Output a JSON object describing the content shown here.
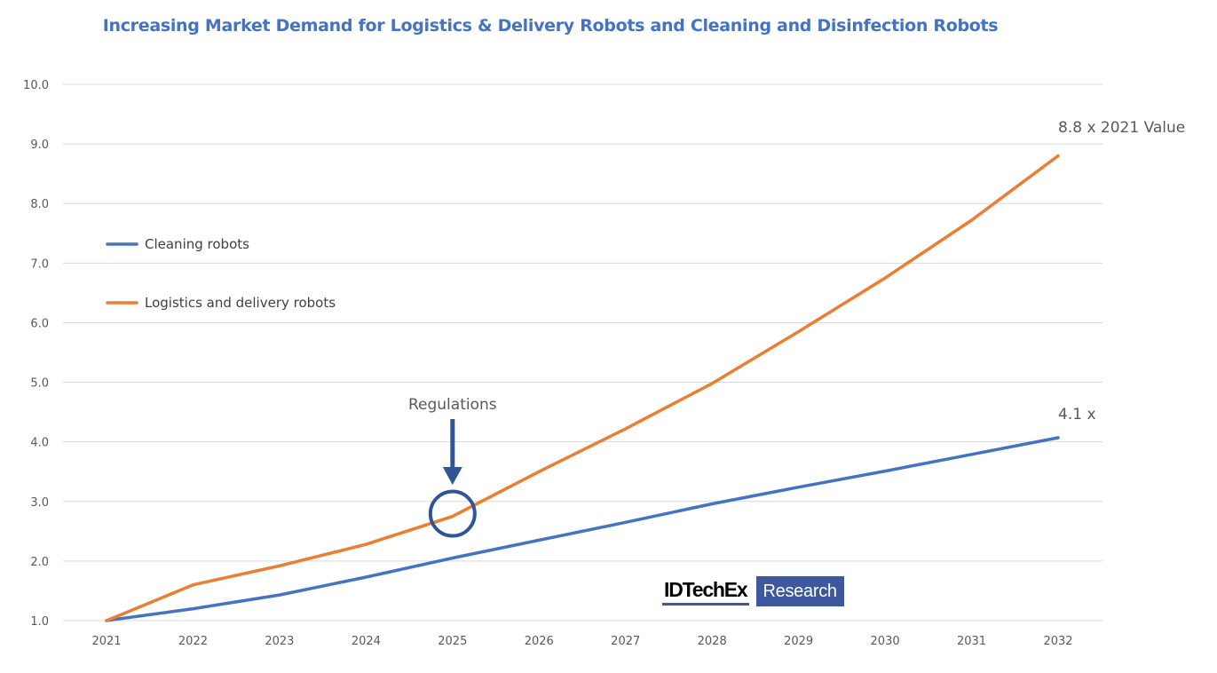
{
  "chart_data": {
    "type": "line",
    "title": "Increasing Market Demand for Logistics & Delivery Robots and Cleaning and Disinfection Robots",
    "xlabel": "",
    "ylabel": "",
    "categories": [
      "2021",
      "2022",
      "2023",
      "2024",
      "2025",
      "2026",
      "2027",
      "2028",
      "2029",
      "2030",
      "2031",
      "2032"
    ],
    "y_ticks": [
      "1.0",
      "2.0",
      "3.0",
      "4.0",
      "5.0",
      "6.0",
      "7.0",
      "8.0",
      "9.0",
      "10.0"
    ],
    "ylim": [
      1.0,
      10.0
    ],
    "grid": true,
    "legend_position": "left",
    "series": [
      {
        "name": "Cleaning robots",
        "color": "#4472c4",
        "values": [
          1.0,
          1.2,
          1.43,
          1.73,
          2.05,
          2.35,
          2.65,
          2.96,
          3.24,
          3.51,
          3.79,
          4.07
        ]
      },
      {
        "name": "Logistics and delivery robots",
        "color": "#ed7d31",
        "values": [
          1.0,
          1.6,
          1.92,
          2.28,
          2.75,
          3.5,
          4.22,
          4.98,
          5.85,
          6.75,
          7.72,
          8.8
        ]
      }
    ],
    "annotations": [
      {
        "name": "end-label-logistics",
        "text": "8.8 x 2021 Value",
        "x": "2032",
        "y": 8.8
      },
      {
        "name": "end-label-cleaning",
        "text": "4.1 x",
        "x": "2032",
        "y": 4.07
      },
      {
        "name": "regulations",
        "text": "Regulations",
        "x": "2025",
        "y": 2.75,
        "marker": "circle-with-down-arrow",
        "color": "#2f5597"
      }
    ]
  },
  "logo": {
    "brand": "IDTechEx",
    "suffix": "Research",
    "color": "#3e58a0"
  }
}
